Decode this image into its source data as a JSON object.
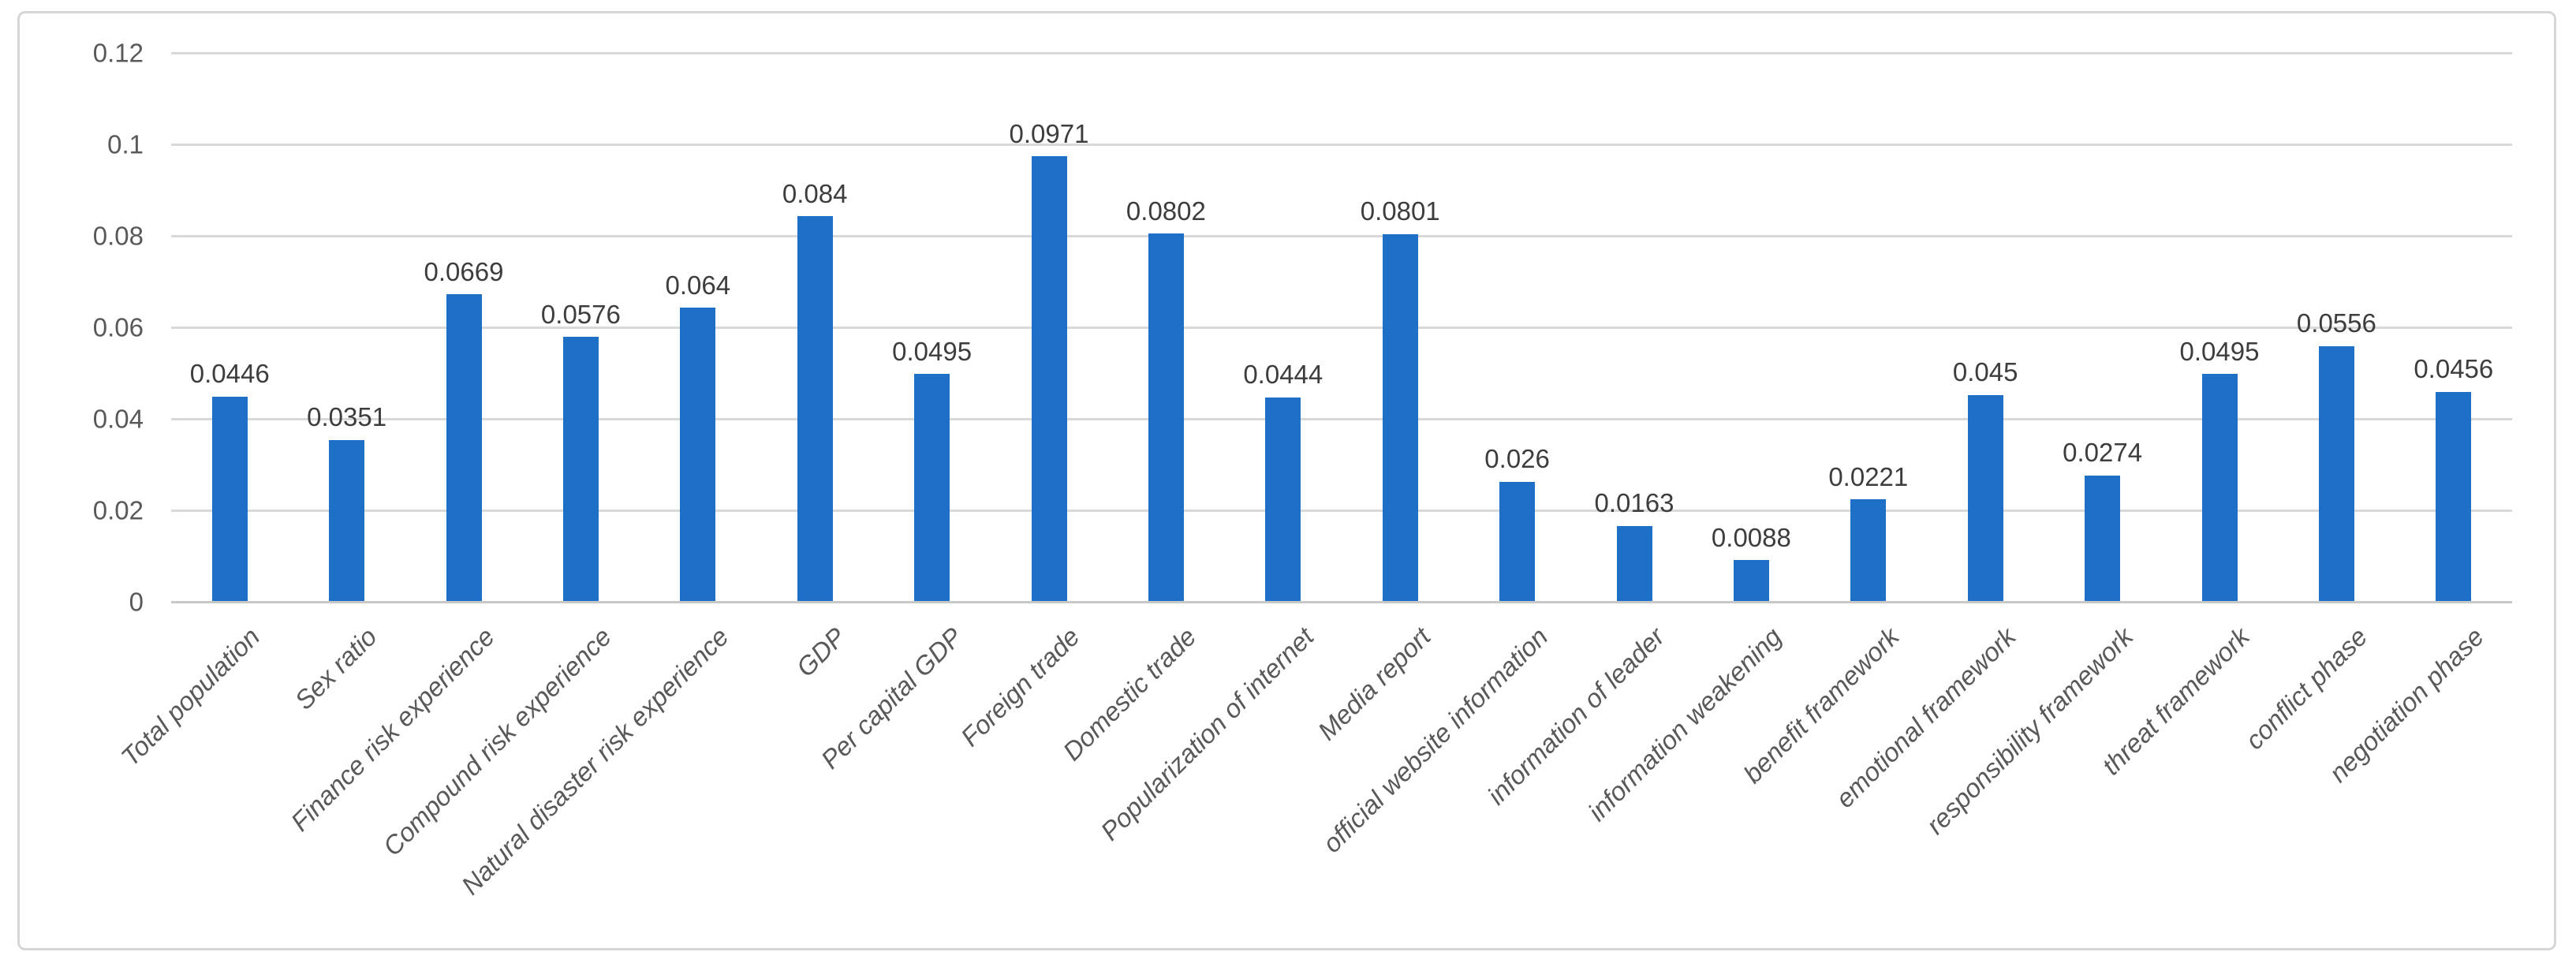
{
  "chart_data": {
    "type": "bar",
    "title": "",
    "xlabel": "",
    "ylabel": "",
    "grid": true,
    "legend": "none",
    "ylim": [
      0,
      0.12
    ],
    "y_tick_values": [
      0,
      0.02,
      0.04,
      0.06,
      0.08,
      0.1,
      0.12
    ],
    "y_tick_labels": [
      "0",
      "0.02",
      "0.04",
      "0.06",
      "0.08",
      "0.1",
      "0.12"
    ],
    "categories": [
      "Total population",
      "Sex ratio",
      "Finance risk experience",
      "Compound risk experience",
      "Natural disaster risk experience",
      "GDP",
      "Per capital GDP",
      "Foreign trade",
      "Domestic trade",
      "Popularization of internet",
      "Media report",
      "official website information",
      "information of leader",
      "information weakening",
      "benefit framework",
      "emotional framework",
      "responsibility framework",
      "threat framework",
      "conflict phase",
      "negotiation phase"
    ],
    "values": [
      0.0446,
      0.0351,
      0.0669,
      0.0576,
      0.064,
      0.084,
      0.0495,
      0.0971,
      0.0802,
      0.0444,
      0.0801,
      0.026,
      0.0163,
      0.0088,
      0.0221,
      0.045,
      0.0274,
      0.0495,
      0.0556,
      0.0456
    ],
    "value_labels": [
      "0.0446",
      "0.0351",
      "0.0669",
      "0.0576",
      "0.064",
      "0.084",
      "0.0495",
      "0.0971",
      "0.0802",
      "0.0444",
      "0.0801",
      "0.026",
      "0.0163",
      "0.0088",
      "0.0221",
      "0.045",
      "0.0274",
      "0.0495",
      "0.0556",
      "0.0456"
    ],
    "bar_color": "#1e70c6",
    "gridline_color": "#d9d9d9",
    "axis_line_color": "#c8c8c8",
    "axis_text_color": "#595959",
    "data_label_color": "#3d3d3d",
    "frame_border_color": "#d6d6d6",
    "background_color": "#ffffff"
  }
}
